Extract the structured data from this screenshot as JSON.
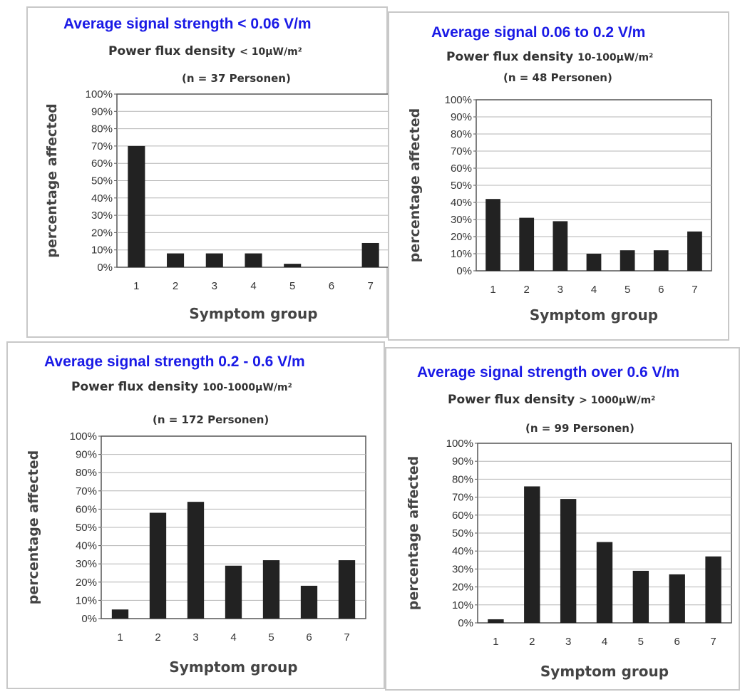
{
  "colors": {
    "title": "#1a1ae6",
    "bar": "#222222",
    "grid": "#b4b4b4",
    "text": "#333333"
  },
  "chart_data": [
    {
      "type": "bar",
      "title": "Average signal strength < 0.06 V/m",
      "subtitle_label": "Power flux density",
      "subtitle_value": "< 10μW/m²",
      "n_label": "(n = 37 Personen)",
      "xlabel": "Symptom group",
      "ylabel": "percentage affected",
      "ylim": [
        0,
        100
      ],
      "yticks": [
        "0%",
        "10%",
        "20%",
        "30%",
        "40%",
        "50%",
        "60%",
        "70%",
        "80%",
        "90%",
        "100%"
      ],
      "categories": [
        "1",
        "2",
        "3",
        "4",
        "5",
        "6",
        "7"
      ],
      "values": [
        70,
        8,
        8,
        8,
        2,
        0,
        14
      ],
      "grid": true
    },
    {
      "type": "bar",
      "title": "Average signal  0.06 to 0.2 V/m",
      "subtitle_label": "Power flux density",
      "subtitle_value": "10-100μW/m²",
      "n_label": "(n = 48 Personen)",
      "xlabel": "Symptom group",
      "ylabel": "percentage affected",
      "ylim": [
        0,
        100
      ],
      "yticks": [
        "0%",
        "10%",
        "20%",
        "30%",
        "40%",
        "50%",
        "60%",
        "70%",
        "80%",
        "90%",
        "100%"
      ],
      "categories": [
        "1",
        "2",
        "3",
        "4",
        "5",
        "6",
        "7"
      ],
      "values": [
        42,
        31,
        29,
        10,
        12,
        12,
        23
      ],
      "grid": true
    },
    {
      "type": "bar",
      "title": "Average signal strength 0.2 - 0.6 V/m",
      "subtitle_label": "Power flux density",
      "subtitle_value": "100-1000μW/m²",
      "n_label": "(n = 172 Personen)",
      "xlabel": "Symptom group",
      "ylabel": "percentage affected",
      "ylim": [
        0,
        100
      ],
      "yticks": [
        "0%",
        "10%",
        "20%",
        "30%",
        "40%",
        "50%",
        "60%",
        "70%",
        "80%",
        "90%",
        "100%"
      ],
      "categories": [
        "1",
        "2",
        "3",
        "4",
        "5",
        "6",
        "7"
      ],
      "values": [
        5,
        58,
        64,
        29,
        32,
        18,
        32
      ],
      "grid": true
    },
    {
      "type": "bar",
      "title": "Average signal strength over 0.6 V/m",
      "subtitle_label": "Power flux density",
      "subtitle_value": "> 1000μW/m²",
      "n_label": "(n = 99 Personen)",
      "xlabel": "Symptom group",
      "ylabel": "percentage affected",
      "ylim": [
        0,
        100
      ],
      "yticks": [
        "0%",
        "10%",
        "20%",
        "30%",
        "40%",
        "50%",
        "60%",
        "70%",
        "80%",
        "90%",
        "100%"
      ],
      "categories": [
        "1",
        "2",
        "3",
        "4",
        "5",
        "6",
        "7"
      ],
      "values": [
        2,
        76,
        69,
        45,
        29,
        27,
        37
      ],
      "grid": true
    }
  ]
}
